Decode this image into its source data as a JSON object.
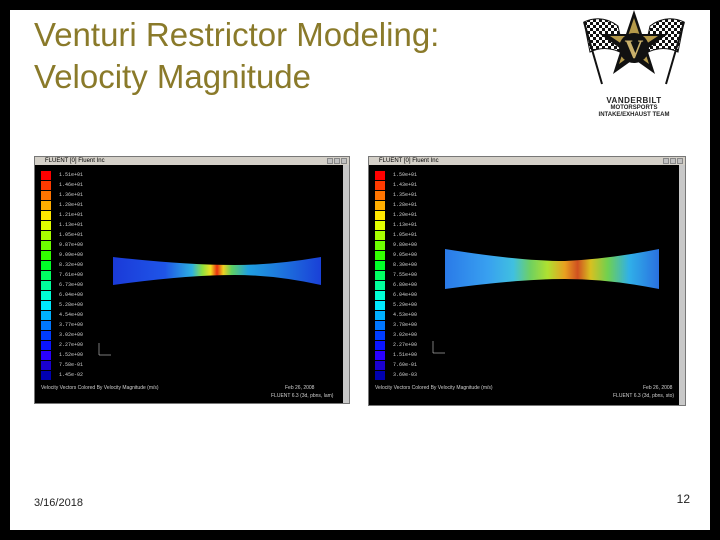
{
  "slide": {
    "title_line1": "Venturi Restrictor Modeling:",
    "title_line2": "Velocity Magnitude",
    "date": "3/16/2018",
    "page_number": "12",
    "title_color": "#8a7a2a"
  },
  "logo": {
    "letter": "V",
    "line1": "VANDERBILT",
    "line2": "MOTORSPORTS",
    "line3": "INTAKE/EXHAUST TEAM"
  },
  "left_window": {
    "title": "FLUENT [0] Fluent Inc",
    "legend": [
      "1.51e+01",
      "1.46e+01",
      "1.36e+01",
      "1.28e+01",
      "1.21e+01",
      "1.13e+01",
      "1.05e+01",
      "9.87e+00",
      "9.09e+00",
      "8.32e+00",
      "7.61e+00",
      "6.73e+00",
      "6.04e+00",
      "5.28e+00",
      "4.54e+00",
      "3.77e+00",
      "3.02e+00",
      "2.27e+00",
      "1.52e+00",
      "7.58e-01",
      "1.45e-02"
    ],
    "caption": "Velocity Vectors Colored By Velocity Magnitude (m/s)",
    "date": "Feb 26, 2008",
    "version": "FLUENT 6.3 (3d, pbns, lam)"
  },
  "right_window": {
    "title": "FLUENT [0] Fluent Inc",
    "legend": [
      "1.50e+01",
      "1.43e+01",
      "1.35e+01",
      "1.28e+01",
      "1.20e+01",
      "1.13e+01",
      "1.05e+01",
      "9.80e+00",
      "9.05e+00",
      "8.30e+00",
      "7.55e+00",
      "6.80e+00",
      "6.04e+00",
      "5.29e+00",
      "4.53e+00",
      "3.78e+00",
      "3.02e+00",
      "2.27e+00",
      "1.51e+00",
      "7.60e-01",
      "3.60e-03"
    ],
    "caption": "Velocity Vectors Colored By Velocity Magnitude (m/s)",
    "date": "Feb 26, 2008",
    "version": "FLUENT 6.3 (3d, pbns, sto)"
  }
}
